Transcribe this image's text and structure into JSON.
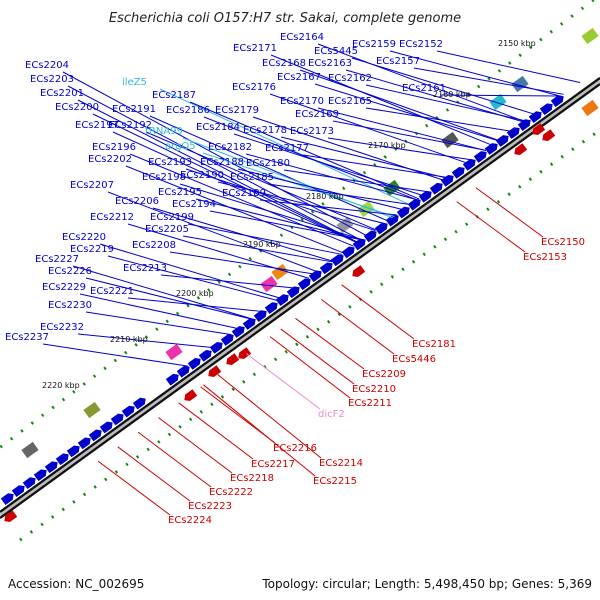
{
  "title": "Escherichia coli O157:H7 str. Sakai, complete genome",
  "footer": {
    "accession": "Accession: NC_002695",
    "summary": "Topology: circular; Length: 5,498,450 bp; Genes: 5,369"
  },
  "colors": {
    "forward": "#0000cc",
    "reverse": "#cc0000",
    "rna": "#33bbdd",
    "regulatory": "#ee88cc",
    "axis": "#222222",
    "grid": "#118811"
  },
  "kbp_ticks": [
    "2150 kbp",
    "2160 kbp",
    "2170 kbp",
    "2180 kbp",
    "2190 kbp",
    "2200 kbp",
    "2210 kbp",
    "2220 kbp"
  ],
  "forward_labels": [
    {
      "text": "ECs2204",
      "kind": "cds"
    },
    {
      "text": "ECs2203",
      "kind": "cds"
    },
    {
      "text": "ECs2201",
      "kind": "cds"
    },
    {
      "text": "ECs2200",
      "kind": "cds"
    },
    {
      "text": "ECs2197",
      "kind": "cds"
    },
    {
      "text": "ECs2196",
      "kind": "cds"
    },
    {
      "text": "ECs2202",
      "kind": "cds"
    },
    {
      "text": "ECs2207",
      "kind": "cds"
    },
    {
      "text": "ECs2212",
      "kind": "cds"
    },
    {
      "text": "ECs2206",
      "kind": "cds"
    },
    {
      "text": "ECs2220",
      "kind": "cds"
    },
    {
      "text": "ECs2219",
      "kind": "cds"
    },
    {
      "text": "ECs2227",
      "kind": "cds"
    },
    {
      "text": "ECs2226",
      "kind": "cds"
    },
    {
      "text": "ECs2229",
      "kind": "cds"
    },
    {
      "text": "ECs2230",
      "kind": "cds"
    },
    {
      "text": "ECs2232",
      "kind": "cds"
    },
    {
      "text": "ECs2237",
      "kind": "cds"
    },
    {
      "text": "ECs2221",
      "kind": "cds"
    },
    {
      "text": "ECs2213",
      "kind": "cds"
    },
    {
      "text": "ECs2208",
      "kind": "cds"
    },
    {
      "text": "ECs2205",
      "kind": "cds"
    },
    {
      "text": "ECs2199",
      "kind": "cds"
    },
    {
      "text": "ECs2195",
      "kind": "cds"
    },
    {
      "text": "ECs2194",
      "kind": "cds"
    },
    {
      "text": "ECs2198",
      "kind": "cds"
    },
    {
      "text": "ECs2193",
      "kind": "cds"
    },
    {
      "text": "ECs2190",
      "kind": "cds"
    },
    {
      "text": "ECs2192",
      "kind": "cds"
    },
    {
      "text": "ileZ5",
      "kind": "rna"
    },
    {
      "text": "ECs2191",
      "kind": "cds"
    },
    {
      "text": "tRNA99",
      "kind": "rna"
    },
    {
      "text": "argQ5",
      "kind": "rna"
    },
    {
      "text": "ECs2187",
      "kind": "cds"
    },
    {
      "text": "ECs2186",
      "kind": "cds"
    },
    {
      "text": "ECs2184",
      "kind": "cds"
    },
    {
      "text": "ECs2182",
      "kind": "cds"
    },
    {
      "text": "ECs2188",
      "kind": "cds"
    },
    {
      "text": "ECs2189",
      "kind": "cds"
    },
    {
      "text": "ECs2185",
      "kind": "cds"
    },
    {
      "text": "ECs2180",
      "kind": "cds"
    },
    {
      "text": "ECs2177",
      "kind": "cds"
    },
    {
      "text": "ECs2178",
      "kind": "cds"
    },
    {
      "text": "ECs2179",
      "kind": "cds"
    },
    {
      "text": "ECs2176",
      "kind": "cds"
    },
    {
      "text": "ECs2171",
      "kind": "cds"
    },
    {
      "text": "ECs2164",
      "kind": "cds"
    },
    {
      "text": "ECs5445",
      "kind": "cds"
    },
    {
      "text": "ECs2168",
      "kind": "cds"
    },
    {
      "text": "ECs2163",
      "kind": "cds"
    },
    {
      "text": "ECs2167",
      "kind": "cds"
    },
    {
      "text": "ECs2162",
      "kind": "cds"
    },
    {
      "text": "ECs2170",
      "kind": "cds"
    },
    {
      "text": "ECs2169",
      "kind": "cds"
    },
    {
      "text": "ECs2165",
      "kind": "cds"
    },
    {
      "text": "ECs2173",
      "kind": "cds"
    },
    {
      "text": "ECs2159",
      "kind": "cds"
    },
    {
      "text": "ECs2152",
      "kind": "cds"
    },
    {
      "text": "ECs2157",
      "kind": "cds"
    },
    {
      "text": "ECs2161",
      "kind": "cds"
    }
  ],
  "reverse_labels": [
    {
      "text": "ECs2150",
      "kind": "cds"
    },
    {
      "text": "ECs2153",
      "kind": "cds"
    },
    {
      "text": "ECs2181",
      "kind": "cds"
    },
    {
      "text": "ECs5446",
      "kind": "cds"
    },
    {
      "text": "ECs2209",
      "kind": "cds"
    },
    {
      "text": "ECs2210",
      "kind": "cds"
    },
    {
      "text": "ECs2211",
      "kind": "cds"
    },
    {
      "text": "dicF2",
      "kind": "regulatory"
    },
    {
      "text": "ECs2214",
      "kind": "cds"
    },
    {
      "text": "ECs2216",
      "kind": "cds"
    },
    {
      "text": "ECs2215",
      "kind": "cds"
    },
    {
      "text": "ECs2217",
      "kind": "cds"
    },
    {
      "text": "ECs2218",
      "kind": "cds"
    },
    {
      "text": "ECs2222",
      "kind": "cds"
    },
    {
      "text": "ECs2223",
      "kind": "cds"
    },
    {
      "text": "ECs2224",
      "kind": "cds"
    }
  ]
}
